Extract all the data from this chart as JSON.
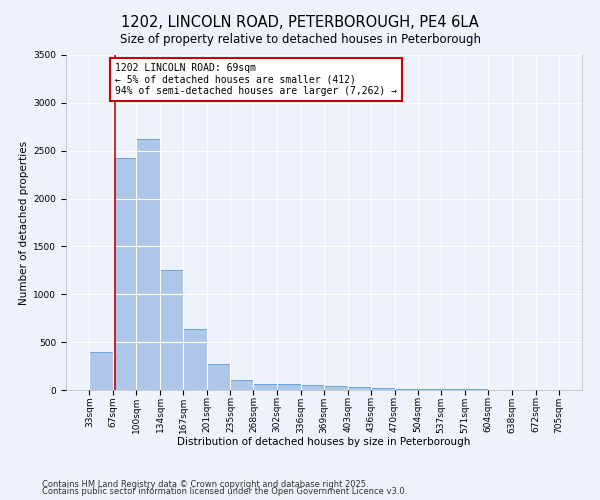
{
  "title": "1202, LINCOLN ROAD, PETERBOROUGH, PE4 6LA",
  "subtitle": "Size of property relative to detached houses in Peterborough",
  "xlabel": "Distribution of detached houses by size in Peterborough",
  "ylabel": "Number of detached properties",
  "footnote1": "Contains HM Land Registry data © Crown copyright and database right 2025.",
  "footnote2": "Contains public sector information licensed under the Open Government Licence v3.0.",
  "annotation_line1": "1202 LINCOLN ROAD: 69sqm",
  "annotation_line2": "← 5% of detached houses are smaller (412)",
  "annotation_line3": "94% of semi-detached houses are larger (7,262) →",
  "property_size": 69,
  "bin_edges": [
    33,
    67,
    100,
    134,
    167,
    201,
    235,
    268,
    302,
    336,
    369,
    403,
    436,
    470,
    504,
    537,
    571,
    604,
    638,
    672,
    705
  ],
  "bar_heights": [
    400,
    2420,
    2625,
    1250,
    640,
    270,
    100,
    65,
    60,
    50,
    40,
    28,
    18,
    14,
    11,
    8,
    6,
    5,
    4,
    4
  ],
  "bar_color": "#aec6e8",
  "bar_edge_color": "#5b9bd5",
  "vline_color": "#cc0000",
  "vline_x": 69,
  "annotation_box_color": "#cc0000",
  "ylim": [
    0,
    3500
  ],
  "yticks": [
    0,
    500,
    1000,
    1500,
    2000,
    2500,
    3000,
    3500
  ],
  "background_color": "#eef2fb",
  "grid_color": "#ffffff",
  "title_fontsize": 10.5,
  "subtitle_fontsize": 8.5,
  "axis_label_fontsize": 7.5,
  "tick_fontsize": 6.5,
  "annotation_fontsize": 7,
  "footnote_fontsize": 6
}
